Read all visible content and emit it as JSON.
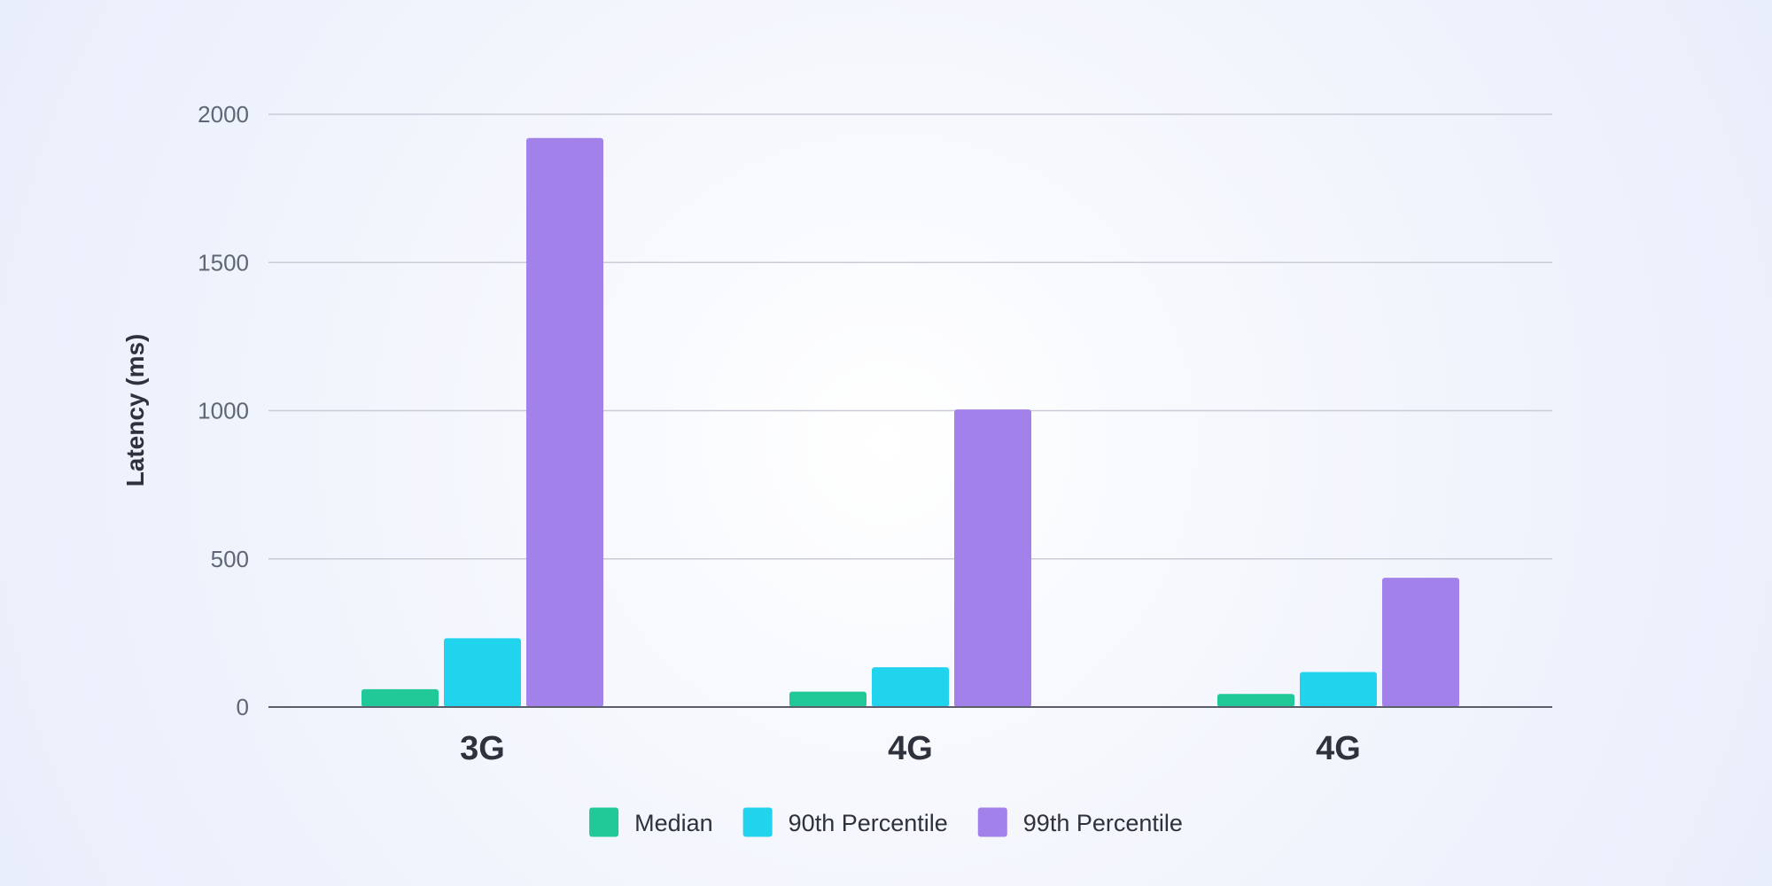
{
  "chart_data": {
    "type": "bar",
    "title": "",
    "xlabel": "",
    "ylabel": "Latency (ms)",
    "categories": [
      "3G",
      "4G",
      "4G"
    ],
    "series": [
      {
        "name": "Median",
        "values": [
          60,
          52,
          44
        ],
        "color": "#20c997"
      },
      {
        "name": "90th Percentile",
        "values": [
          232,
          134,
          118
        ],
        "color": "#22d3ee"
      },
      {
        "name": "99th Percentile",
        "values": [
          1920,
          1004,
          436
        ],
        "color": "#a281ea"
      }
    ],
    "ylim": [
      0,
      2000
    ],
    "yticks": [
      0,
      500,
      1000,
      1500,
      2000
    ],
    "grid": true,
    "legend_position": "bottom-center"
  }
}
